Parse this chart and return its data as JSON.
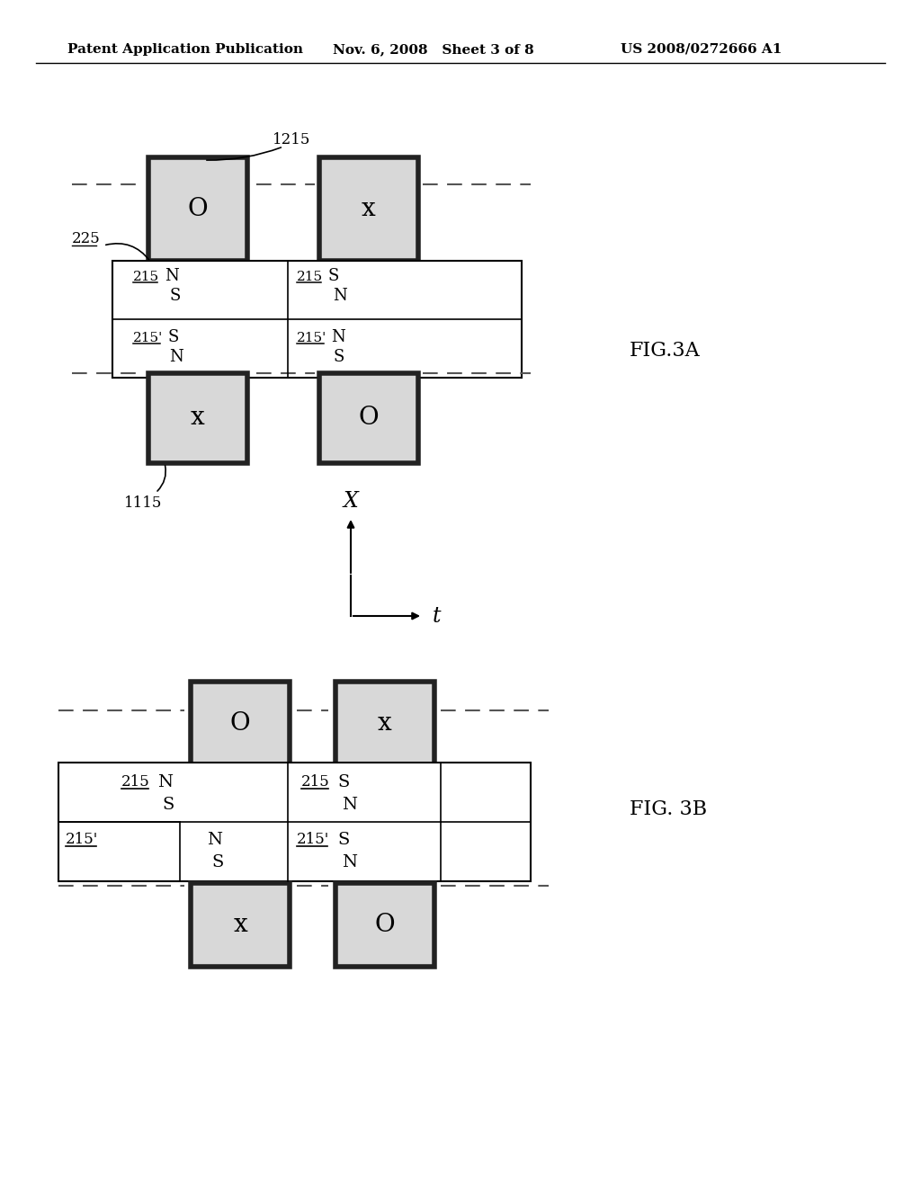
{
  "bg_color": "#ffffff",
  "header_left": "Patent Application Publication",
  "header_mid": "Nov. 6, 2008   Sheet 3 of 8",
  "header_right": "US 2008/0272666 A1",
  "fig3a_label": "FIG.3A",
  "fig3b_label": "FIG. 3B",
  "coord_x_label": "X",
  "coord_t_label": "t"
}
